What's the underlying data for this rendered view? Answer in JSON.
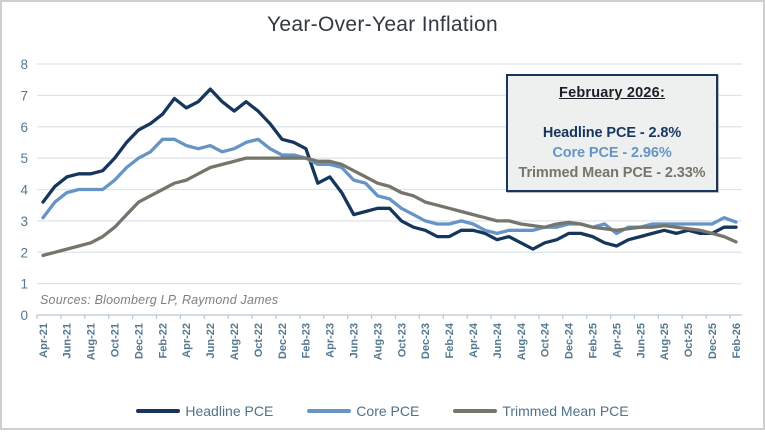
{
  "chart_data": {
    "type": "line",
    "title": "Year-Over-Year Inflation",
    "xlabel": "",
    "ylabel": "",
    "ylim": [
      0,
      8
    ],
    "y_ticks": [
      0,
      1,
      2,
      3,
      4,
      5,
      6,
      7,
      8
    ],
    "grid": "horizontal",
    "legend_position": "bottom",
    "x_tick_labels": [
      "Apr-21",
      "Jun-21",
      "Aug-21",
      "Oct-21",
      "Dec-21",
      "Feb-22",
      "Apr-22",
      "Jun-22",
      "Aug-22",
      "Oct-22",
      "Dec-22",
      "Feb-23",
      "Apr-23",
      "Jun-23",
      "Aug-23",
      "Oct-23",
      "Dec-23",
      "Feb-24",
      "Apr-24",
      "Jun-24",
      "Aug-24",
      "Oct-24",
      "Dec-24",
      "Feb-25",
      "Apr-25",
      "Jun-25",
      "Aug-25",
      "Oct-25",
      "Dec-25",
      "Feb-26"
    ],
    "x_months": [
      "Apr-21",
      "May-21",
      "Jun-21",
      "Jul-21",
      "Aug-21",
      "Sep-21",
      "Oct-21",
      "Nov-21",
      "Dec-21",
      "Jan-22",
      "Feb-22",
      "Mar-22",
      "Apr-22",
      "May-22",
      "Jun-22",
      "Jul-22",
      "Aug-22",
      "Sep-22",
      "Oct-22",
      "Nov-22",
      "Dec-22",
      "Jan-23",
      "Feb-23",
      "Mar-23",
      "Apr-23",
      "May-23",
      "Jun-23",
      "Jul-23",
      "Aug-23",
      "Sep-23",
      "Oct-23",
      "Nov-23",
      "Dec-23",
      "Jan-24",
      "Feb-24",
      "Mar-24",
      "Apr-24",
      "May-24",
      "Jun-24",
      "Jul-24",
      "Aug-24",
      "Sep-24",
      "Oct-24",
      "Nov-24",
      "Dec-24",
      "Jan-25",
      "Feb-25",
      "Mar-25",
      "Apr-25",
      "May-25",
      "Jun-25",
      "Jul-25",
      "Aug-25",
      "Sep-25",
      "Oct-25",
      "Nov-25",
      "Dec-25",
      "Jan-26",
      "Feb-26"
    ],
    "series": [
      {
        "name": "Headline PCE",
        "color": "#17365d",
        "values": [
          3.6,
          4.1,
          4.4,
          4.5,
          4.5,
          4.6,
          5.0,
          5.5,
          5.9,
          6.1,
          6.4,
          6.9,
          6.6,
          6.8,
          7.2,
          6.8,
          6.5,
          6.8,
          6.5,
          6.1,
          5.6,
          5.5,
          5.3,
          4.2,
          4.4,
          3.9,
          3.2,
          3.3,
          3.4,
          3.4,
          3.0,
          2.8,
          2.7,
          2.5,
          2.5,
          2.7,
          2.7,
          2.6,
          2.4,
          2.5,
          2.3,
          2.1,
          2.3,
          2.4,
          2.6,
          2.6,
          2.5,
          2.3,
          2.2,
          2.4,
          2.5,
          2.6,
          2.7,
          2.6,
          2.7,
          2.6,
          2.6,
          2.8,
          2.8
        ]
      },
      {
        "name": "Core PCE",
        "color": "#6695c5",
        "values": [
          3.1,
          3.6,
          3.9,
          4.0,
          4.0,
          4.0,
          4.3,
          4.7,
          5.0,
          5.2,
          5.6,
          5.6,
          5.4,
          5.3,
          5.4,
          5.2,
          5.3,
          5.5,
          5.6,
          5.3,
          5.1,
          5.1,
          5.0,
          4.8,
          4.8,
          4.7,
          4.3,
          4.2,
          3.8,
          3.7,
          3.4,
          3.2,
          3.0,
          2.9,
          2.9,
          3.0,
          2.9,
          2.7,
          2.6,
          2.7,
          2.7,
          2.7,
          2.8,
          2.8,
          2.9,
          2.9,
          2.8,
          2.9,
          2.6,
          2.8,
          2.8,
          2.9,
          2.9,
          2.9,
          2.9,
          2.9,
          2.9,
          3.1,
          2.96
        ]
      },
      {
        "name": "Trimmed Mean PCE",
        "color": "#75756b",
        "values": [
          1.9,
          2.0,
          2.1,
          2.2,
          2.3,
          2.5,
          2.8,
          3.2,
          3.6,
          3.8,
          4.0,
          4.2,
          4.3,
          4.5,
          4.7,
          4.8,
          4.9,
          5.0,
          5.0,
          5.0,
          5.0,
          5.0,
          5.0,
          4.9,
          4.9,
          4.8,
          4.6,
          4.4,
          4.2,
          4.1,
          3.9,
          3.8,
          3.6,
          3.5,
          3.4,
          3.3,
          3.2,
          3.1,
          3.0,
          3.0,
          2.9,
          2.85,
          2.8,
          2.9,
          2.95,
          2.9,
          2.8,
          2.75,
          2.7,
          2.75,
          2.8,
          2.8,
          2.85,
          2.8,
          2.75,
          2.7,
          2.6,
          2.5,
          2.33
        ]
      }
    ]
  },
  "annotation_box": {
    "heading": "February 2026:",
    "lines": [
      {
        "text": "Headline PCE - 2.8%",
        "color": "#17365d"
      },
      {
        "text": "Core PCE - 2.96%",
        "color": "#6695c5"
      },
      {
        "text": "Trimmed Mean PCE - 2.33%",
        "color": "#75756b"
      }
    ]
  },
  "source_note": "Sources: Bloomberg LP, Raymond James",
  "colors": {
    "axis_text": "#55798f",
    "gridline": "#dde4ea",
    "axis_line": "#b9c6d0",
    "title_text": "#333940",
    "legend_text": "#4f7389",
    "box_bg": "#eef0f0",
    "box_border": "#17365d",
    "source_text": "#7f7f7f"
  }
}
